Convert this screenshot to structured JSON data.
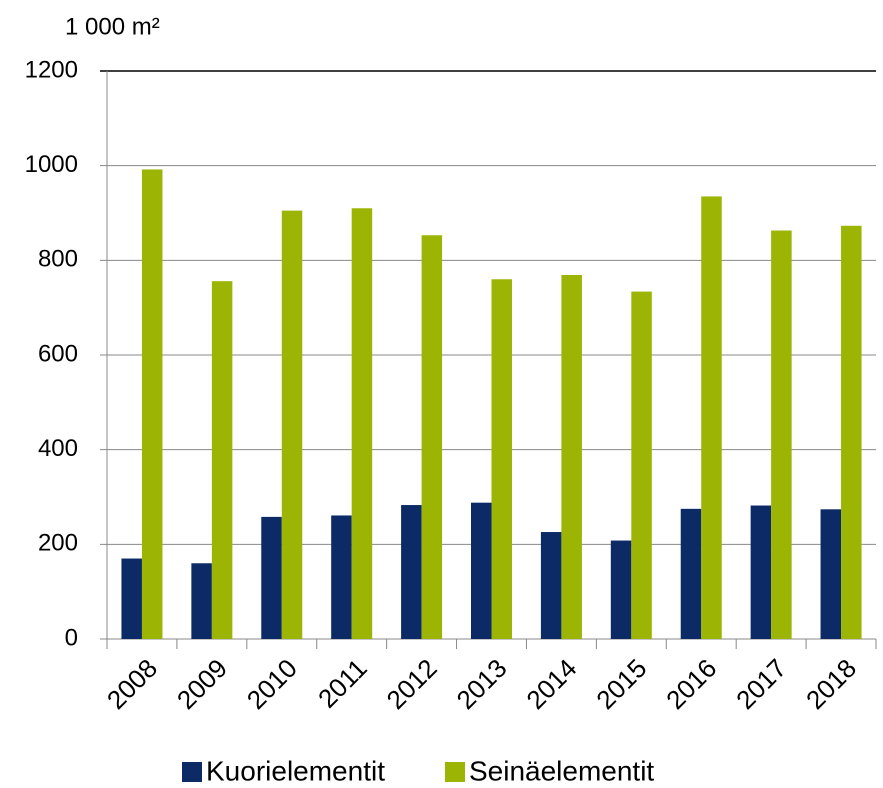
{
  "chart_data": {
    "type": "bar",
    "y_axis_label": "1 000 m²",
    "categories": [
      "2008",
      "2009",
      "2010",
      "2011",
      "2012",
      "2013",
      "2014",
      "2015",
      "2016",
      "2017",
      "2018"
    ],
    "series": [
      {
        "name": "Kuorielementit",
        "color": "#0b2a66",
        "values": [
          170,
          160,
          258,
          261,
          283,
          288,
          226,
          208,
          275,
          282,
          274
        ]
      },
      {
        "name": "Seinäelementit",
        "color": "#9cb404",
        "values": [
          992,
          756,
          905,
          910,
          853,
          760,
          769,
          734,
          935,
          863,
          873
        ]
      }
    ],
    "ylim": [
      0,
      1200
    ],
    "yticks": [
      0,
      200,
      400,
      600,
      800,
      1000,
      1200
    ],
    "grid": true
  }
}
